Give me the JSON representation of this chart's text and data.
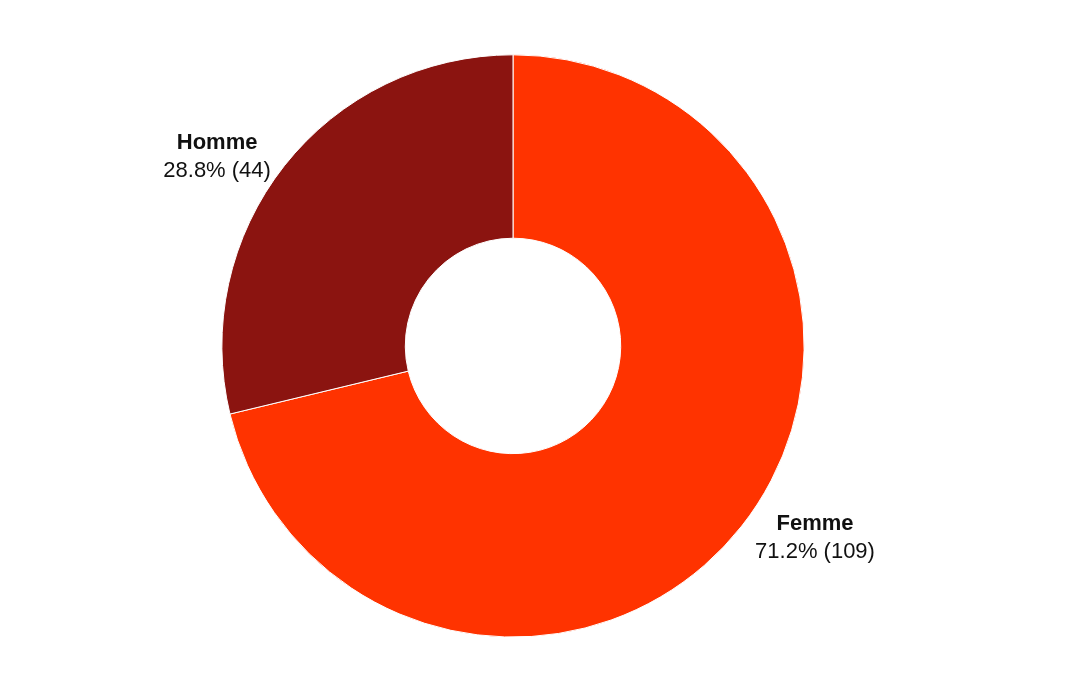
{
  "chart_data": {
    "type": "donut",
    "categories": [
      "Femme",
      "Homme"
    ],
    "values": [
      109,
      44
    ],
    "colors": [
      "#ff3300",
      "#8b1410"
    ],
    "value_labels": [
      "71.2% (109)",
      "28.8% (44)"
    ]
  }
}
